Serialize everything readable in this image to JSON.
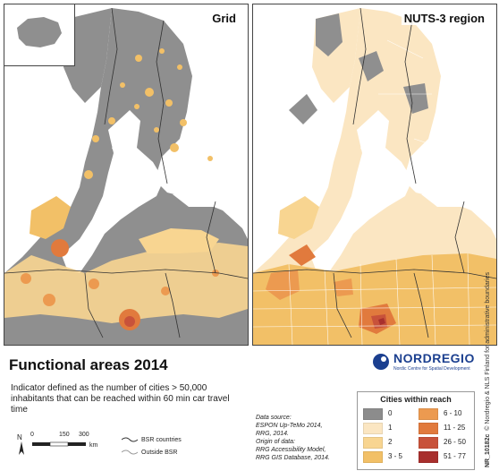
{
  "panels": [
    {
      "label": "Grid"
    },
    {
      "label": "NUTS-3 region"
    }
  ],
  "title": "Functional areas 2014",
  "subtitle": "Indicator defined as the number of cities > 50,000 inhabitants that can be reached within 60 min car travel time",
  "legend": {
    "title": "Cities within reach",
    "items": [
      {
        "label": "0",
        "color": "#8c8c8c"
      },
      {
        "label": "1",
        "color": "#fbe6c2"
      },
      {
        "label": "2",
        "color": "#f8d591"
      },
      {
        "label": "3 - 5",
        "color": "#f2c067"
      },
      {
        "label": "6 - 10",
        "color": "#ec9a50"
      },
      {
        "label": "11 - 25",
        "color": "#e17a3d"
      },
      {
        "label": "26 - 50",
        "color": "#c8523a"
      },
      {
        "label": "51 - 77",
        "color": "#a82f2d"
      }
    ]
  },
  "boundaries": [
    {
      "label": "BSR countries"
    },
    {
      "label": "Outside BSR"
    }
  ],
  "scale": {
    "ticks": [
      "0",
      "150",
      "300"
    ],
    "unit": "km"
  },
  "source": {
    "lines": [
      "Data source:",
      "ESPON Up-TeMo 2014,",
      "RRG, 2014.",
      "Origin of data:",
      "RRG Accessibility Model,",
      "RRG GIS Database, 2014."
    ]
  },
  "logo": {
    "name": "NORDREGIO",
    "tagline": "Nordic Centre for Spatial Development"
  },
  "credit": {
    "id": "NR_10182c",
    "text": "© Nordregio & NLS Finland for administrative boundaries"
  }
}
